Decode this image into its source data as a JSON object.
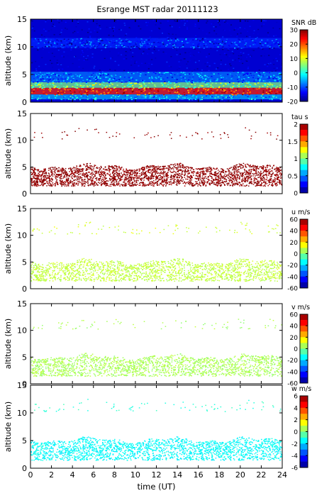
{
  "title": "Esrange MST radar 20111123",
  "chart_data": [
    {
      "type": "heatmap",
      "ylabel": "altitude (km)",
      "xlim": [
        0,
        24
      ],
      "ylim": [
        0,
        15
      ],
      "x_ticks": [],
      "y_ticks": [
        "0",
        "5",
        "10",
        "15"
      ],
      "colorbar": {
        "label": "SNR dB",
        "vmin": -20,
        "vmax": 30,
        "ticks": [
          "30",
          "20",
          "10",
          "0",
          "-10",
          "-20"
        ],
        "colormap": "jet-continuous"
      },
      "layers": [
        {
          "altitude_km": [
            0.5,
            1.4
          ],
          "value": -5
        },
        {
          "altitude_km": [
            1.4,
            2.6
          ],
          "value": 22
        },
        {
          "altitude_km": [
            2.6,
            3.6
          ],
          "value": 5
        },
        {
          "altitude_km": [
            3.6,
            5.5
          ],
          "value": -8
        },
        {
          "altitude_km": [
            9.8,
            11.6
          ],
          "value": -12
        }
      ],
      "background_value": -16
    },
    {
      "type": "heatmap",
      "ylabel": "altitude (km)",
      "xlim": [
        0,
        24
      ],
      "ylim": [
        0,
        15
      ],
      "x_ticks": [],
      "y_ticks": [
        "0",
        "5",
        "10",
        "15"
      ],
      "colorbar": {
        "label": "tau s",
        "vmin": 0,
        "vmax": 2,
        "ticks": [
          "2",
          "1.5",
          "1",
          "0.5",
          "0"
        ],
        "colormap": "jet-discrete"
      },
      "layers": [
        {
          "altitude_km": [
            1.5,
            5.2
          ],
          "value": 1.97,
          "density": 0.85
        },
        {
          "altitude_km": [
            10.3,
            12.0
          ],
          "value": 1.97,
          "density": 0.04
        }
      ]
    },
    {
      "type": "heatmap",
      "ylabel": "altitude (km)",
      "xlim": [
        0,
        24
      ],
      "ylim": [
        0,
        15
      ],
      "x_ticks": [],
      "y_ticks": [
        "0",
        "5",
        "10",
        "15"
      ],
      "colorbar": {
        "label": "u m/s",
        "vmin": -60,
        "vmax": 60,
        "ticks": [
          "60",
          "40",
          "20",
          "0",
          "-20",
          "-40",
          "-60"
        ],
        "colormap": "jet-discrete"
      },
      "layers": [
        {
          "altitude_km": [
            1.5,
            5.2
          ],
          "value": 8,
          "density": 0.6
        },
        {
          "altitude_km": [
            10.3,
            12.0
          ],
          "value": 10,
          "density": 0.06
        }
      ]
    },
    {
      "type": "heatmap",
      "ylabel": "altitude (km)",
      "xlim": [
        0,
        24
      ],
      "ylim": [
        0,
        15
      ],
      "x_ticks": [],
      "y_ticks": [
        "0",
        "5",
        "10",
        "15"
      ],
      "colorbar": {
        "label": "v m/s",
        "vmin": -60,
        "vmax": 60,
        "ticks": [
          "60",
          "40",
          "20",
          "0",
          "-20",
          "-40",
          "-60"
        ],
        "colormap": "jet-discrete"
      },
      "layers": [
        {
          "altitude_km": [
            1.5,
            5.2
          ],
          "value": 5,
          "density": 0.6
        },
        {
          "altitude_km": [
            10.3,
            12.0
          ],
          "value": 5,
          "density": 0.05
        }
      ]
    },
    {
      "type": "heatmap",
      "ylabel": "altitude (km)",
      "xlabel": "time (UT)",
      "xlim": [
        0,
        24
      ],
      "ylim": [
        0,
        15
      ],
      "x_ticks": [
        "0",
        "2",
        "4",
        "6",
        "8",
        "10",
        "12",
        "14",
        "16",
        "18",
        "20",
        "22",
        "24"
      ],
      "y_ticks": [
        "0",
        "5",
        "10",
        "15"
      ],
      "colorbar": {
        "label": "w m/s",
        "vmin": -6,
        "vmax": 6,
        "ticks": [
          "6",
          "4",
          "2",
          "0",
          "-2",
          "-4",
          "-6"
        ],
        "colormap": "jet-discrete"
      },
      "layers": [
        {
          "altitude_km": [
            1.5,
            5.2
          ],
          "value": -1.5,
          "density": 0.65
        },
        {
          "altitude_km": [
            10.3,
            12.0
          ],
          "value": -1,
          "density": 0.05
        }
      ]
    }
  ]
}
